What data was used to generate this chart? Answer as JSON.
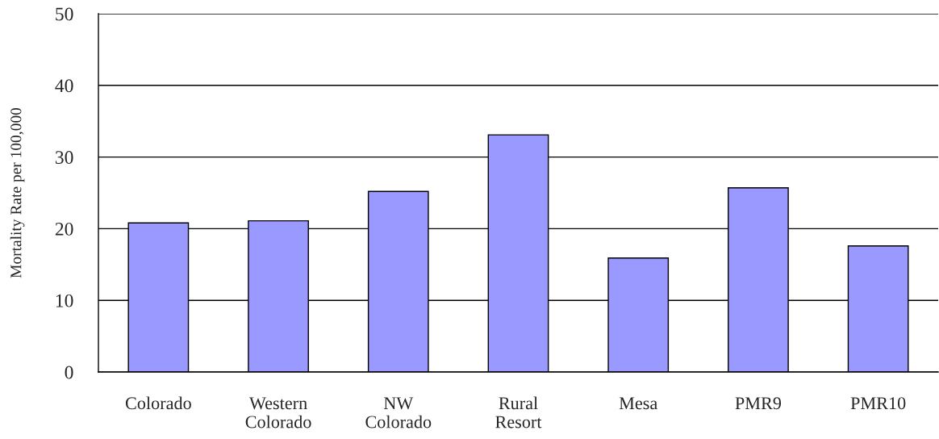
{
  "chart_data": {
    "type": "bar",
    "ylabel": "Mortality Rate per 100,000",
    "categories": [
      "Colorado",
      "Western\nColorado",
      "NW\nColorado",
      "Rural\nResort",
      "Mesa",
      "PMR9",
      "PMR10"
    ],
    "values": [
      20.8,
      21.1,
      25.2,
      33.1,
      15.9,
      25.7,
      17.6
    ],
    "color": "#9999ff",
    "ylim": [
      0,
      50
    ],
    "yticks": [
      0,
      10,
      20,
      30,
      40,
      50
    ],
    "grid": "y"
  }
}
